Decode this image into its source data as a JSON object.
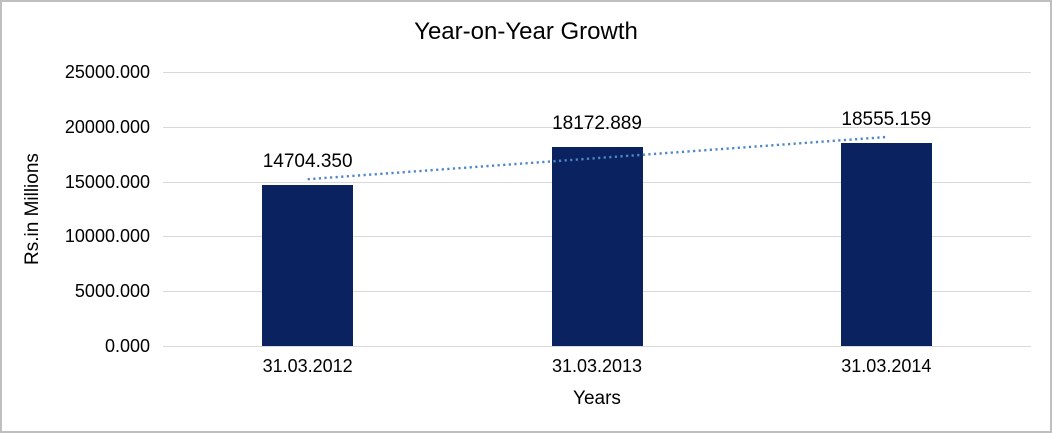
{
  "chart_data": {
    "type": "bar",
    "title": "Year-on-Year Growth",
    "xlabel": "Years",
    "ylabel": "Rs.in Millions",
    "categories": [
      "31.03.2012",
      "31.03.2013",
      "31.03.2014"
    ],
    "values": [
      14704.35,
      18172.889,
      18555.159
    ],
    "data_labels": [
      "14704.350",
      "18172.889",
      "18555.159"
    ],
    "y_ticks": [
      {
        "label": "25000.000",
        "value": 25000
      },
      {
        "label": "20000.000",
        "value": 20000
      },
      {
        "label": "15000.000",
        "value": 15000
      },
      {
        "label": "10000.000",
        "value": 10000
      },
      {
        "label": "5000.000",
        "value": 5000
      },
      {
        "label": "0.000",
        "value": 0
      }
    ],
    "ylim": [
      0,
      25000
    ],
    "grid": true,
    "legend": false,
    "trendline": {
      "type": "linear",
      "style": "dotted"
    },
    "colors": {
      "bar": "#0A2360",
      "trendline": "#4E86C8",
      "gridline": "#D9D9D9",
      "text": "#000000",
      "border": "#BFBFBF"
    }
  }
}
